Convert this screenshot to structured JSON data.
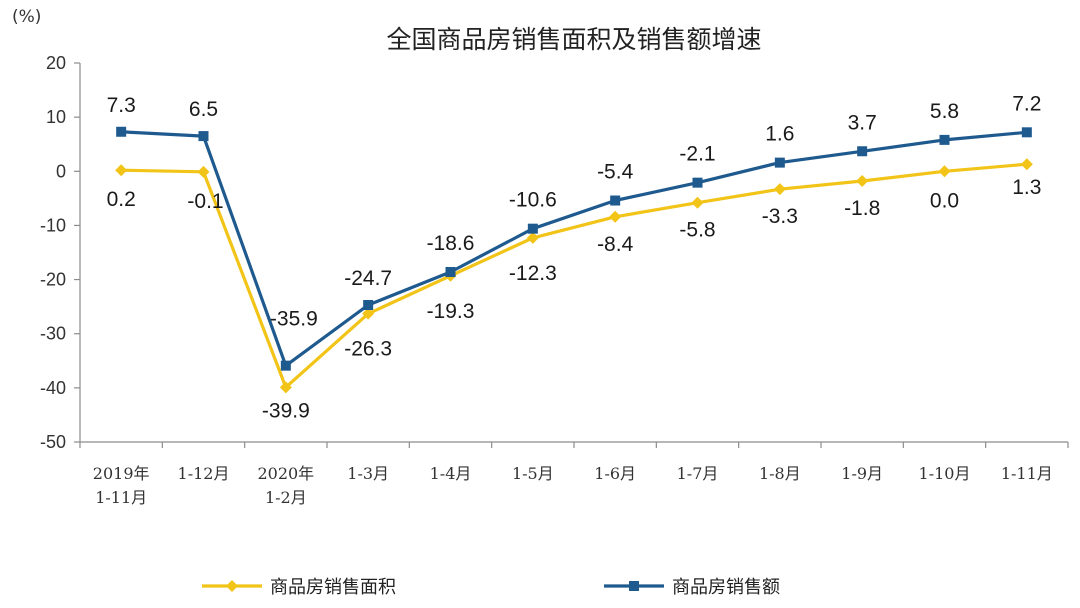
{
  "chart_data": {
    "type": "line",
    "title": "全国商品房销售面积及销售额增速",
    "unit": "(%)",
    "categories": [
      [
        "2019年",
        "1-11月"
      ],
      [
        "1-12月"
      ],
      [
        "2020年",
        "1-2月"
      ],
      [
        "1-3月"
      ],
      [
        "1-4月"
      ],
      [
        "1-5月"
      ],
      [
        "1-6月"
      ],
      [
        "1-7月"
      ],
      [
        "1-8月"
      ],
      [
        "1-9月"
      ],
      [
        "1-10月"
      ],
      [
        "1-11月"
      ]
    ],
    "ylim": [
      -50,
      20
    ],
    "yticks": [
      "20",
      "10",
      "0",
      "-10",
      "-20",
      "-30",
      "-40",
      "-50"
    ],
    "grid": false,
    "legend_position": "bottom",
    "series": [
      {
        "name": "商品房销售面积",
        "color": "#f2c418",
        "marker": "diamond",
        "values": [
          0.2,
          -0.1,
          -39.9,
          -26.3,
          -19.3,
          -12.3,
          -8.4,
          -5.8,
          -3.3,
          -1.8,
          0.0,
          1.3
        ],
        "labels": [
          "0.2",
          "-0.1",
          "-39.9",
          "-26.3",
          "-19.3",
          "-12.3",
          "-8.4",
          "-5.8",
          "-3.3",
          "-1.8",
          "0.0",
          "1.3"
        ]
      },
      {
        "name": "商品房销售额",
        "color": "#1f5a8f",
        "marker": "square",
        "values": [
          7.3,
          6.5,
          -35.9,
          -24.7,
          -18.6,
          -10.6,
          -5.4,
          -2.1,
          1.6,
          3.7,
          5.8,
          7.2
        ],
        "labels": [
          "7.3",
          "6.5",
          "-35.9",
          "-24.7",
          "-18.6",
          "-10.6",
          "-5.4",
          "-2.1",
          "1.6",
          "3.7",
          "5.8",
          "7.2"
        ]
      }
    ]
  }
}
